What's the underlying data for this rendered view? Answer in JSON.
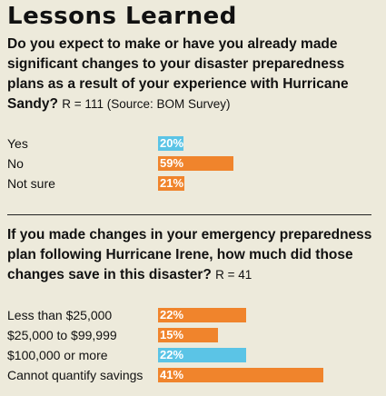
{
  "title": "Lessons Learned",
  "question1": {
    "text": "Do you expect to make or have you already made significant changes to your disaster preparedness plans as a result of your experience with Hurricane Sandy?",
    "respondents": "R = 111 (Source: BOM Survey)"
  },
  "question2": {
    "text": "If you made changes in your emergency preparedness plan following Hurricane Irene, how much did those changes save in this disaster?",
    "respondents": "R = 41"
  },
  "colors": {
    "blue": "#5bc4e6",
    "orange": "#f0842c",
    "background": "#edeadb"
  },
  "chart_data": [
    {
      "type": "bar",
      "orientation": "horizontal",
      "categories": [
        "Yes",
        "No",
        "Not sure"
      ],
      "values": [
        20,
        59,
        21
      ],
      "labels": [
        "20%",
        "59%",
        "21%"
      ],
      "colors": [
        "#5bc4e6",
        "#f0842c",
        "#f0842c"
      ],
      "unit": "%"
    },
    {
      "type": "bar",
      "orientation": "horizontal",
      "categories": [
        "Less than $25,000",
        "$25,000 to $99,999",
        "$100,000 or more",
        "Cannot quantify savings"
      ],
      "values": [
        22,
        15,
        22,
        41
      ],
      "labels": [
        "22%",
        "15%",
        "22%",
        "41%"
      ],
      "colors": [
        "#f0842c",
        "#f0842c",
        "#5bc4e6",
        "#f0842c"
      ],
      "unit": "%"
    }
  ]
}
